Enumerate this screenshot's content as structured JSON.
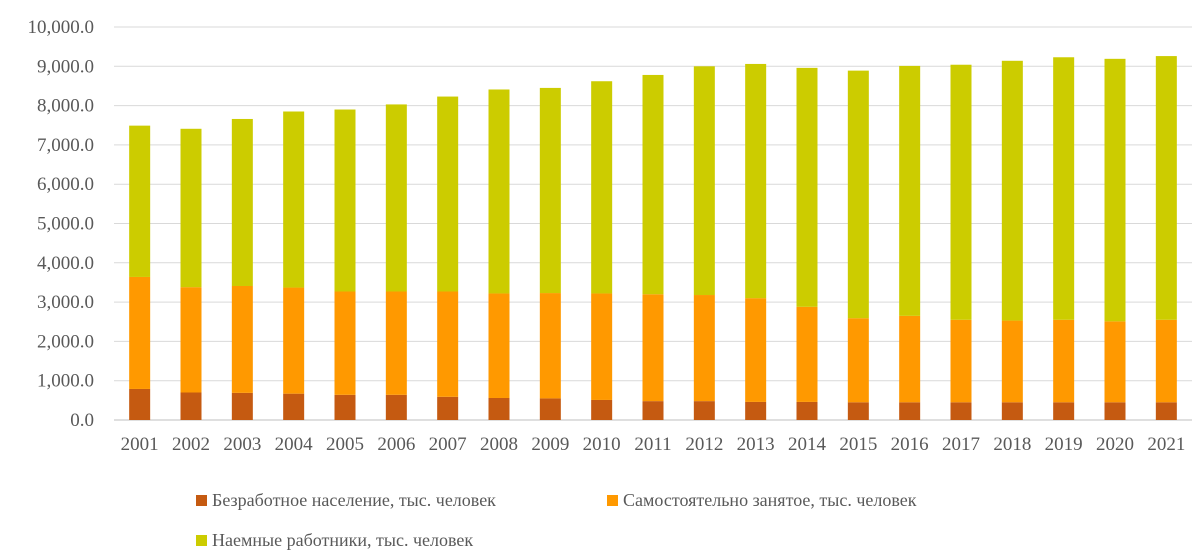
{
  "chart_data": {
    "type": "bar",
    "stacked": true,
    "title": "",
    "xlabel": "",
    "ylabel": "",
    "ylim": [
      0,
      10000
    ],
    "yticks": [
      "0.0",
      "1,000.0",
      "2,000.0",
      "3,000.0",
      "4,000.0",
      "5,000.0",
      "6,000.0",
      "7,000.0",
      "8,000.0",
      "9,000.0",
      "10,000.0"
    ],
    "grid": true,
    "legend_position": "bottom",
    "categories": [
      "2001",
      "2002",
      "2003",
      "2004",
      "2005",
      "2006",
      "2007",
      "2008",
      "2009",
      "2010",
      "2011",
      "2012",
      "2013",
      "2014",
      "2015",
      "2016",
      "2017",
      "2018",
      "2019",
      "2020",
      "2021"
    ],
    "series": [
      {
        "name": "Безработное население, тыс. человек",
        "color": "#C55A11",
        "values": [
          790,
          700,
          690,
          670,
          640,
          640,
          590,
          560,
          550,
          510,
          480,
          480,
          460,
          460,
          450,
          450,
          450,
          450,
          450,
          450,
          450
        ]
      },
      {
        "name": "Самостоятельно занятое, тыс. человек",
        "color": "#FF9900",
        "values": [
          2850,
          2680,
          2720,
          2700,
          2630,
          2630,
          2680,
          2660,
          2680,
          2710,
          2720,
          2700,
          2640,
          2420,
          2140,
          2200,
          2100,
          2080,
          2100,
          2060,
          2100
        ]
      },
      {
        "name": "Наемные работники, тыс. человек",
        "color": "#CCCC00",
        "values": [
          3850,
          4030,
          4250,
          4480,
          4630,
          4760,
          4960,
          5190,
          5220,
          5400,
          5580,
          5820,
          5960,
          6080,
          6300,
          6360,
          6490,
          6610,
          6680,
          6680,
          6710
        ]
      }
    ]
  }
}
